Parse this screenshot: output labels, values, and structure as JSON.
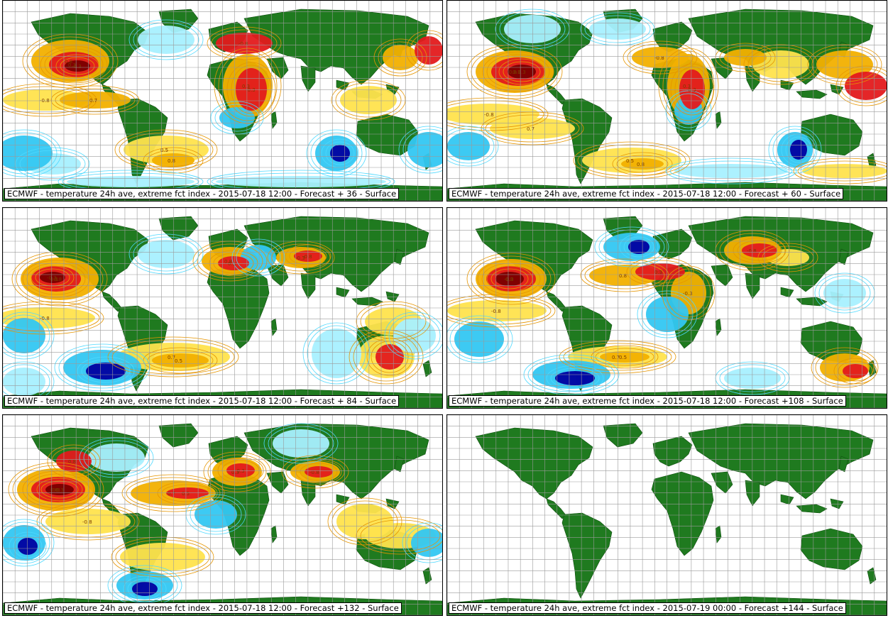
{
  "colors": {
    "land": "#1f7a1f",
    "ocean": "#ffffff",
    "grid": "#9a9a9a",
    "warm_light": "#ffe34d",
    "warm_mid": "#f2b000",
    "warm_strong": "#e31a1c",
    "warm_extreme": "#7a0000",
    "cold_light": "#a8f0ff",
    "cold_mid": "#33c7f2",
    "cold_strong": "#1450e6",
    "cold_extreme": "#0000a0",
    "contour_warm": "#e69500",
    "contour_cold": "#4dd9ff"
  },
  "panels": [
    {
      "id": "p1",
      "caption": "ECMWF - temperature 24h ave, extreme fct index - 2015-07-18 12:00 - Forecast + 36 - Surface",
      "has_anomaly": true
    },
    {
      "id": "p2",
      "caption": "ECMWF - temperature 24h ave, extreme fct index - 2015-07-18 12:00 - Forecast + 60 - Surface",
      "has_anomaly": true
    },
    {
      "id": "p3",
      "caption": "ECMWF - temperature 24h ave, extreme fct index - 2015-07-18 12:00 - Forecast + 84 - Surface",
      "has_anomaly": true
    },
    {
      "id": "p4",
      "caption": "ECMWF - temperature 24h ave, extreme fct index - 2015-07-18 12:00 - Forecast +108 - Surface",
      "has_anomaly": true
    },
    {
      "id": "p5",
      "caption": "ECMWF - temperature 24h ave, extreme fct index - 2015-07-18 12:00 - Forecast +132 - Surface",
      "has_anomaly": true
    },
    {
      "id": "p6",
      "caption": "ECMWF - temperature 24h ave, extreme fct index - 2015-07-19 00:00 - Forecast +144 - Surface",
      "has_anomaly": false
    }
  ],
  "contour_labels": [
    "0.8",
    "0.3",
    "-0.3",
    "-0.8",
    "0.7",
    "0.5"
  ]
}
